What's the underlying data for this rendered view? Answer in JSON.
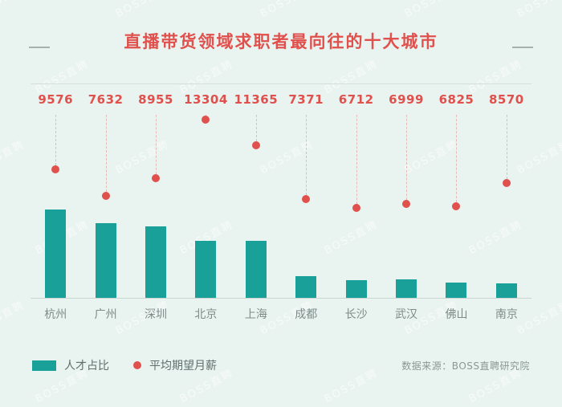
{
  "header": {
    "title": "直播带货领域求职者最向往的十大城市"
  },
  "legend": {
    "bar_label": "人才占比",
    "dot_label": "平均期望月薪"
  },
  "footer": {
    "source": "数据来源：BOSS直聘研究院"
  },
  "watermark": "BOSS直聘",
  "colors": {
    "background": "#e9f3f0",
    "bar": "#18a099",
    "dot": "#e0504c",
    "title": "#e0504c",
    "label_gray": "#7d8c89"
  },
  "chart_data": {
    "type": "bar",
    "title": "直播带货领域求职者最向往的十大城市",
    "categories": [
      "杭州",
      "广州",
      "深圳",
      "北京",
      "上海",
      "成都",
      "长沙",
      "武汉",
      "佛山",
      "南京"
    ],
    "series": [
      {
        "name": "人才占比",
        "type": "bar",
        "note": "relative bar heights estimated from pixels, percent of tallest (杭州=100)",
        "values_relative_pct": [
          100,
          85,
          81,
          65,
          65,
          25,
          20,
          21,
          17,
          16
        ]
      },
      {
        "name": "平均期望月薪",
        "type": "scatter",
        "values": [
          9576,
          7632,
          8955,
          13304,
          11365,
          7371,
          6712,
          6999,
          6825,
          8570
        ]
      }
    ],
    "value_labels": [
      "9576",
      "7632",
      "8955",
      "13304",
      "11365",
      "7371",
      "6712",
      "6999",
      "6825",
      "8570"
    ],
    "legend_position": "bottom-left",
    "grid": false,
    "xlabel": "",
    "ylabel": ""
  }
}
